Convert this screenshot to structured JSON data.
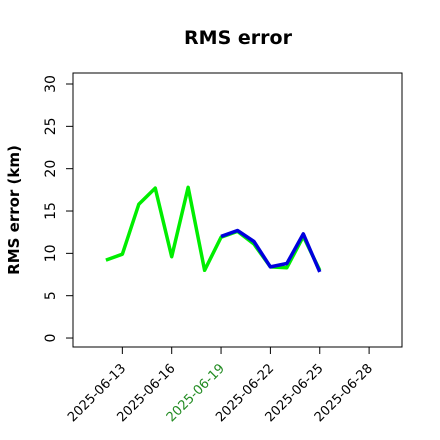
{
  "chart_data": {
    "type": "line",
    "title": "RMS error",
    "y_label": "RMS error (km)",
    "xlim": [
      "2025-06-10",
      "2025-06-30"
    ],
    "ylim": [
      -1.06,
      31.3
    ],
    "xticks": [
      "2025-06-13",
      "2025-06-16",
      "2025-06-19",
      "2025-06-22",
      "2025-06-25",
      "2025-06-28"
    ],
    "xtick_colors": [
      "#000000",
      "#000000",
      "#228b22",
      "#000000",
      "#000000",
      "#000000"
    ],
    "yticks": [
      0,
      5,
      10,
      15,
      20,
      25,
      30
    ],
    "series": [
      {
        "color": "#00ee00",
        "x": [
          "2025-06-12",
          "2025-06-13",
          "2025-06-14",
          "2025-06-15",
          "2025-06-16",
          "2025-06-17",
          "2025-06-18",
          "2025-06-19",
          "2025-06-20",
          "2025-06-21",
          "2025-06-22",
          "2025-06-23",
          "2025-06-24",
          "2025-06-25"
        ],
        "values": [
          9.2,
          9.9,
          15.8,
          17.7,
          9.6,
          17.8,
          8.0,
          11.9,
          12.6,
          11.1,
          8.4,
          8.3,
          12.0,
          8.0
        ]
      },
      {
        "color": "#0000dd",
        "x": [
          "2025-06-19",
          "2025-06-20",
          "2025-06-21",
          "2025-06-22",
          "2025-06-23",
          "2025-06-24",
          "2025-06-25"
        ],
        "values": [
          12.0,
          12.7,
          11.4,
          8.4,
          8.8,
          12.3,
          7.8
        ]
      }
    ]
  }
}
